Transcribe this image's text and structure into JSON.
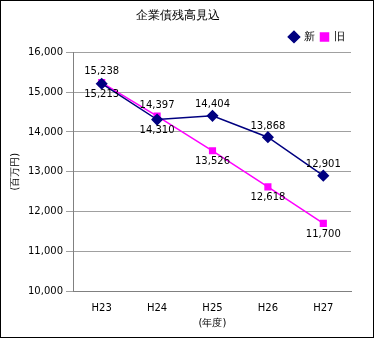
{
  "chart_data": {
    "type": "line",
    "title": "企業債残高見込",
    "x_label": "(年度)",
    "y_label": "(百万円)",
    "categories": [
      "H23",
      "H24",
      "H25",
      "H26",
      "H27"
    ],
    "series": [
      {
        "name": "新",
        "color": "#000080",
        "marker": "diamond",
        "line_style": "solid",
        "values": [
          15213,
          14310,
          14404,
          13868,
          12901
        ],
        "value_labels": [
          "15,213",
          "14,310",
          "14,404",
          "13,868",
          "12,901"
        ]
      },
      {
        "name": "旧",
        "color": "#ff00ff",
        "marker": "square",
        "line_style": "solid",
        "values": [
          15238,
          14397,
          13526,
          12618,
          11700
        ],
        "value_labels": [
          "15,238",
          "14,397",
          "13,526",
          "12,618",
          "11,700"
        ]
      }
    ],
    "ylim": [
      10000,
      16000
    ],
    "yticks": [
      {
        "value": 10000,
        "label": "10,000"
      },
      {
        "value": 11000,
        "label": "11,000"
      },
      {
        "value": 12000,
        "label": "12,000"
      },
      {
        "value": 13000,
        "label": "13,000"
      },
      {
        "value": 14000,
        "label": "14,000"
      },
      {
        "value": 15000,
        "label": "15,000"
      },
      {
        "value": 16000,
        "label": "16,000"
      }
    ],
    "grid": true,
    "legend": "upper right",
    "data_labels": true
  }
}
